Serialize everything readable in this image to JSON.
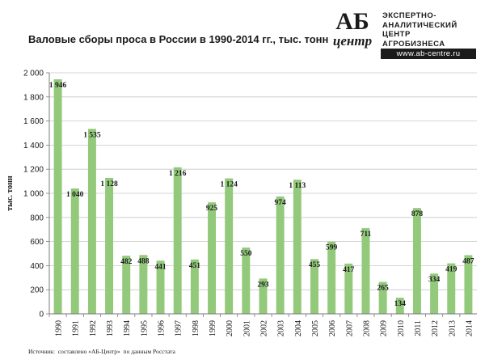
{
  "header": {
    "title": "Валовые сборы проса в России в 1990-2014 гг., тыс. тонн"
  },
  "logo": {
    "mark_top": "АБ",
    "mark_bottom": "центр",
    "line1": "ЭКСПЕРТНО-",
    "line2": "АНАЛИТИЧЕСКИЙ",
    "line3": "ЦЕНТР",
    "line4": "АГРОБИЗНЕСА",
    "url": "www.ab-centre.ru"
  },
  "footer": {
    "source": "Источник:  составлено «АБ-Центр»  по данным Росстата"
  },
  "chart_data": {
    "type": "bar",
    "title": "Валовые сборы проса в России в 1990-2014 гг., тыс. тонн",
    "ylabel": "тыс. тонн",
    "xlabel": "",
    "ylim": [
      0,
      2000
    ],
    "yticks": [
      0,
      200,
      400,
      600,
      800,
      1000,
      1200,
      1400,
      1600,
      1800,
      2000
    ],
    "ytick_labels": [
      "0",
      "200",
      "400",
      "600",
      "800",
      "1 000",
      "1 200",
      "1 400",
      "1 600",
      "1 800",
      "2 000"
    ],
    "grid": true,
    "bar_color": "#92c97a",
    "categories": [
      "1990",
      "1991",
      "1992",
      "1993",
      "1994",
      "1995",
      "1996",
      "1997",
      "1998",
      "1999",
      "2000",
      "2001",
      "2002",
      "2003",
      "2004",
      "2005",
      "2006",
      "2007",
      "2008",
      "2009",
      "2010",
      "2011",
      "2012",
      "2013",
      "2014"
    ],
    "values": [
      1946,
      1040,
      1535,
      1128,
      482,
      488,
      441,
      1216,
      451,
      925,
      1124,
      550,
      293,
      974,
      1113,
      455,
      599,
      417,
      711,
      265,
      134,
      878,
      334,
      419,
      487
    ],
    "value_labels": [
      "1 946",
      "1 040",
      "1 535",
      "1 128",
      "482",
      "488",
      "441",
      "1 216",
      "451",
      "925",
      "1 124",
      "550",
      "293",
      "974",
      "1 113",
      "455",
      "599",
      "417",
      "711",
      "265",
      "134",
      "878",
      "334",
      "419",
      "487"
    ]
  }
}
